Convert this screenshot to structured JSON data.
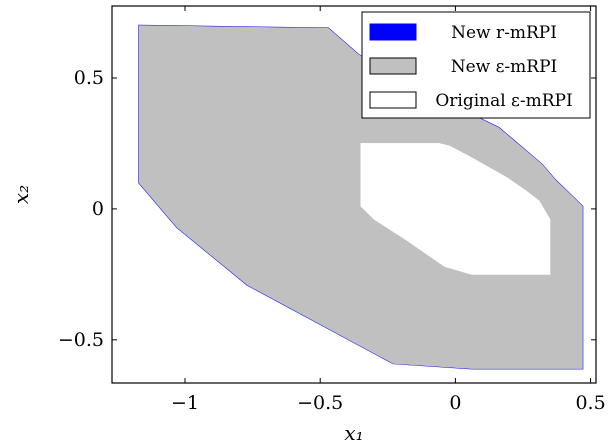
{
  "chart_data": {
    "type": "area",
    "title": "",
    "xlabel": "x₁",
    "ylabel": "x₂",
    "xlim": [
      -1.27,
      0.52
    ],
    "ylim": [
      -0.665,
      0.775
    ],
    "grid": false,
    "legend_placement": "top-right",
    "xticks": [
      {
        "value": -1,
        "label": "−1"
      },
      {
        "value": -0.5,
        "label": "−0.5"
      },
      {
        "value": 0,
        "label": "0"
      },
      {
        "value": 0.5,
        "label": "0.5"
      }
    ],
    "yticks": [
      {
        "value": -0.5,
        "label": "−0.5"
      },
      {
        "value": 0,
        "label": "0"
      },
      {
        "value": 0.5,
        "label": "0.5"
      }
    ],
    "series": [
      {
        "name": "New r-mRPI",
        "legend_label": "New r-mRPI",
        "fill": "#0000ff",
        "stroke": "#0000ff",
        "polygon": [
          [
            -1.17,
            0.7
          ],
          [
            -0.47,
            0.69
          ],
          [
            -0.36,
            0.59
          ],
          [
            -0.18,
            0.48
          ],
          [
            0.16,
            0.31
          ],
          [
            0.32,
            0.17
          ],
          [
            0.37,
            0.11
          ],
          [
            0.47,
            0.01
          ],
          [
            0.47,
            -0.61
          ],
          [
            0.06,
            -0.61
          ],
          [
            -0.23,
            -0.59
          ],
          [
            -0.77,
            -0.29
          ],
          [
            -1.03,
            -0.07
          ],
          [
            -1.17,
            0.1
          ]
        ]
      },
      {
        "name": "New ε-mRPI",
        "legend_label": "New ε-mRPI",
        "fill": "#c0c0c0",
        "stroke": "#c0c0c0",
        "polygon": [
          [
            -1.17,
            0.7
          ],
          [
            -0.47,
            0.69
          ],
          [
            -0.36,
            0.59
          ],
          [
            -0.18,
            0.48
          ],
          [
            0.16,
            0.31
          ],
          [
            0.32,
            0.17
          ],
          [
            0.37,
            0.11
          ],
          [
            0.47,
            0.01
          ],
          [
            0.47,
            -0.61
          ],
          [
            0.06,
            -0.61
          ],
          [
            -0.23,
            -0.59
          ],
          [
            -0.77,
            -0.29
          ],
          [
            -1.03,
            -0.07
          ],
          [
            -1.17,
            0.1
          ]
        ]
      },
      {
        "name": "Original ε-mRPI",
        "legend_label": "Original ε-mRPI",
        "fill": "#ffffff",
        "stroke": "#ffffff",
        "polygon": [
          [
            -0.35,
            0.25
          ],
          [
            -0.06,
            0.25
          ],
          [
            -0.02,
            0.24
          ],
          [
            0.07,
            0.19
          ],
          [
            0.19,
            0.12
          ],
          [
            0.26,
            0.07
          ],
          [
            0.31,
            0.03
          ],
          [
            0.35,
            -0.04
          ],
          [
            0.35,
            -0.25
          ],
          [
            0.06,
            -0.25
          ],
          [
            -0.04,
            -0.22
          ],
          [
            -0.18,
            -0.12
          ],
          [
            -0.3,
            -0.04
          ],
          [
            -0.35,
            0.01
          ]
        ]
      }
    ]
  }
}
